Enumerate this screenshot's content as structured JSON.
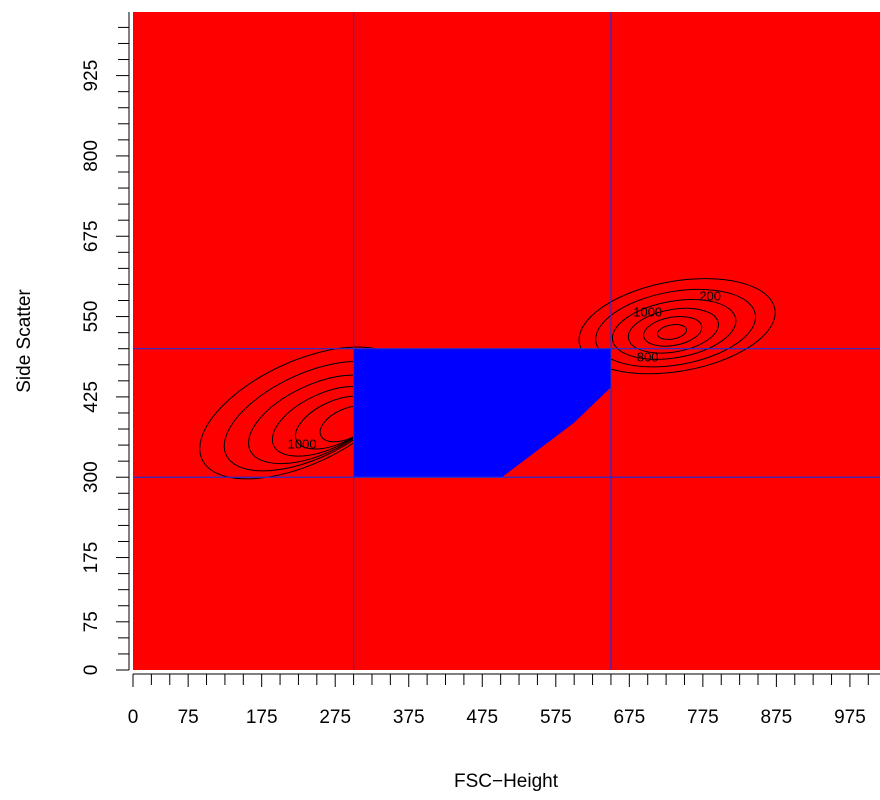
{
  "chart_data": {
    "type": "scatter",
    "title": "",
    "xlabel": "FSC−Height",
    "ylabel": "Side Scatter",
    "xlim": [
      0,
      1023
    ],
    "ylim": [
      0,
      1023
    ],
    "x_ticks": [
      0,
      75,
      175,
      275,
      375,
      475,
      575,
      675,
      775,
      875,
      975
    ],
    "y_ticks": [
      0,
      75,
      175,
      300,
      425,
      550,
      675,
      800,
      925
    ],
    "x_minor_step": 25,
    "y_minor_step": 25,
    "gate_lines": {
      "x": [
        300,
        650
      ],
      "y": [
        300,
        500
      ]
    },
    "gate_region": {
      "x": [
        300,
        650
      ],
      "y": [
        300,
        500
      ]
    },
    "contour_labels": [
      {
        "text": "1000",
        "x": 230,
        "y": 345
      },
      {
        "text": "200",
        "x": 785,
        "y": 575
      },
      {
        "text": "1000",
        "x": 700,
        "y": 550
      },
      {
        "text": "800",
        "x": 700,
        "y": 480
      }
    ],
    "colors": {
      "background": "#ff0000",
      "gate": "#0000ff",
      "gate_line": "#2b2bd0",
      "contour": "#000000"
    }
  }
}
